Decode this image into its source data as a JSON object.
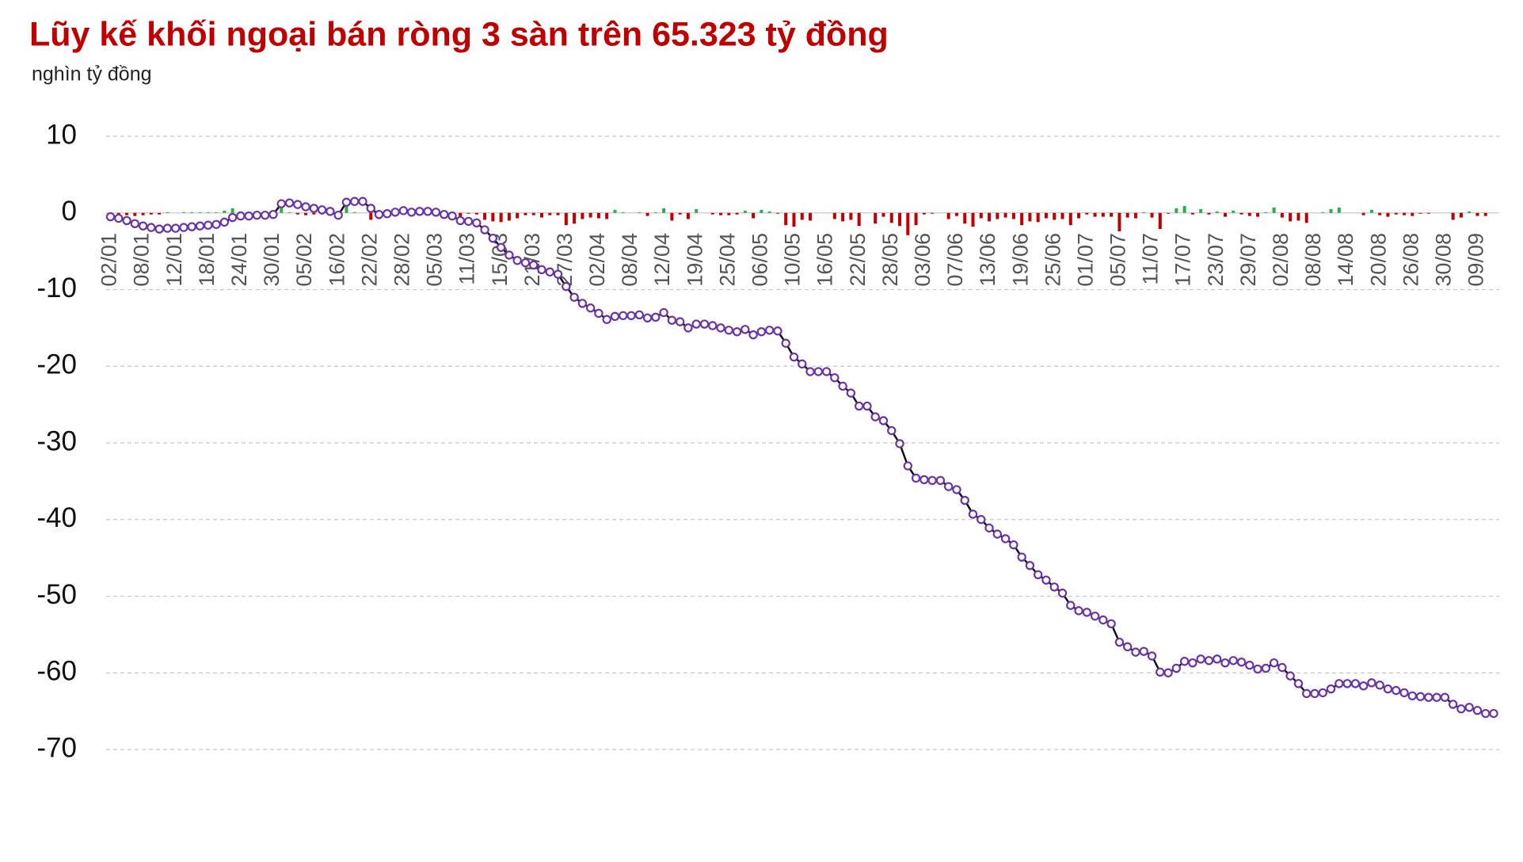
{
  "chart_data": {
    "type": "line",
    "title": "Lũy kế khối ngoại bán ròng 3 sàn trên 65.323 tỷ đồng",
    "subtitle": "nghìn tỷ đồng",
    "categories": [
      "02/01",
      null,
      null,
      null,
      "08/01",
      null,
      null,
      null,
      "12/01",
      null,
      null,
      null,
      "18/01",
      null,
      null,
      null,
      "24/01",
      null,
      null,
      null,
      "30/01",
      null,
      null,
      null,
      "05/02",
      null,
      null,
      null,
      "16/02",
      null,
      null,
      null,
      "22/02",
      null,
      null,
      null,
      "28/02",
      null,
      null,
      null,
      "05/03",
      null,
      null,
      null,
      "11/03",
      null,
      null,
      null,
      "15/03",
      null,
      null,
      null,
      "21/03",
      null,
      null,
      null,
      "27/03",
      null,
      null,
      null,
      "02/04",
      null,
      null,
      null,
      "08/04",
      null,
      null,
      null,
      "12/04",
      null,
      null,
      null,
      "19/04",
      null,
      null,
      null,
      "25/04",
      null,
      null,
      null,
      "06/05",
      null,
      null,
      null,
      "10/05",
      null,
      null,
      null,
      "16/05",
      null,
      null,
      null,
      "22/05",
      null,
      null,
      null,
      "28/05",
      null,
      null,
      null,
      "03/06",
      null,
      null,
      null,
      "07/06",
      null,
      null,
      null,
      "13/06",
      null,
      null,
      null,
      "19/06",
      null,
      null,
      null,
      "25/06",
      null,
      null,
      null,
      "01/07",
      null,
      null,
      null,
      "05/07",
      null,
      null,
      null,
      "11/07",
      null,
      null,
      null,
      "17/07",
      null,
      null,
      null,
      "23/07",
      null,
      null,
      null,
      "29/07",
      null,
      null,
      null,
      "02/08",
      null,
      null,
      null,
      "08/08",
      null,
      null,
      null,
      "14/08",
      null,
      null,
      null,
      "20/08",
      null,
      null,
      null,
      "26/08",
      null,
      null,
      null,
      "30/08",
      null,
      null,
      null,
      "09/09",
      null,
      null
    ],
    "series": [
      {
        "type": "bar",
        "color": "#c00000",
        "positive_color": "#22b14c",
        "values": [
          -0.5,
          -0.2,
          -0.3,
          -0.4,
          -0.3,
          -0.2,
          -0.2,
          0.1,
          0,
          0.1,
          0.1,
          0.1,
          0.1,
          0.1,
          0.3,
          0.6,
          0.2,
          0,
          0.1,
          0,
          0.1,
          1.4,
          0.1,
          -0.2,
          -0.3,
          -0.2,
          -0.2,
          -0.2,
          -0.5,
          1.7,
          0.1,
          0,
          -0.9,
          -0.8,
          0.1,
          0.2,
          0.2,
          -0.2,
          0.1,
          0,
          -0.1,
          -0.3,
          -0.2,
          -0.6,
          -0.1,
          -0.2,
          -0.9,
          -1.1,
          -1.2,
          -1.0,
          -0.7,
          -0.3,
          -0.3,
          -0.6,
          -0.3,
          -0.3,
          -1.6,
          -1.4,
          -0.8,
          -0.6,
          -0.7,
          -0.8,
          0.4,
          0.1,
          0,
          0.1,
          -0.4,
          0.1,
          0.6,
          -1.0,
          -0.2,
          -0.8,
          0.5,
          0,
          -0.2,
          -0.3,
          -0.3,
          -0.2,
          0.3,
          -0.7,
          0.4,
          0.2,
          -0.1,
          -1.6,
          -1.8,
          -0.9,
          -1.0,
          0,
          0,
          -0.8,
          -1.1,
          -0.9,
          -1.7,
          0,
          -1.4,
          -0.5,
          -1.3,
          -1.7,
          -2.9,
          -1.6,
          -0.2,
          -0.1,
          0,
          -0.8,
          -0.4,
          -1.4,
          -1.8,
          -0.7,
          -1.1,
          -0.8,
          -0.6,
          -0.8,
          -1.6,
          -1.1,
          -1.2,
          -0.7,
          -0.9,
          -0.8,
          -1.6,
          -0.7,
          -0.2,
          -0.5,
          -0.5,
          -0.5,
          -2.4,
          -0.6,
          -0.7,
          0.1,
          -0.6,
          -2.1,
          -0.1,
          0.6,
          0.9,
          -0.2,
          0.5,
          -0.2,
          0.2,
          -0.5,
          0.3,
          -0.2,
          -0.4,
          -0.5,
          0.1,
          0.7,
          -0.6,
          -1.1,
          -1.0,
          -1.3,
          0,
          0.1,
          0.5,
          0.7,
          0,
          0,
          -0.3,
          0.4,
          -0.3,
          -0.5,
          -0.2,
          -0.3,
          -0.4,
          -0.1,
          -0.1,
          0,
          0,
          -0.9,
          -0.6,
          0.2,
          -0.4,
          -0.4,
          0
        ]
      },
      {
        "type": "line",
        "color": "#111111",
        "marker_color": "#6a35a8",
        "values": [
          -0.5,
          -0.7,
          -1.0,
          -1.4,
          -1.7,
          -1.9,
          -2.1,
          -2.0,
          -2.0,
          -1.9,
          -1.8,
          -1.7,
          -1.6,
          -1.5,
          -1.2,
          -0.6,
          -0.4,
          -0.4,
          -0.3,
          -0.3,
          -0.2,
          1.2,
          1.3,
          1.1,
          0.8,
          0.6,
          0.4,
          0.2,
          -0.3,
          1.4,
          1.5,
          1.5,
          0.6,
          -0.2,
          -0.1,
          0.1,
          0.3,
          0.1,
          0.2,
          0.2,
          0.1,
          -0.2,
          -0.4,
          -1.0,
          -1.1,
          -1.3,
          -2.2,
          -3.3,
          -4.5,
          -5.5,
          -6.2,
          -6.5,
          -6.8,
          -7.4,
          -7.7,
          -8.0,
          -9.6,
          -11.0,
          -11.8,
          -12.4,
          -13.1,
          -13.9,
          -13.5,
          -13.4,
          -13.4,
          -13.3,
          -13.7,
          -13.6,
          -13.0,
          -14.0,
          -14.2,
          -15.0,
          -14.5,
          -14.5,
          -14.7,
          -15.0,
          -15.3,
          -15.5,
          -15.2,
          -15.9,
          -15.5,
          -15.3,
          -15.4,
          -17.0,
          -18.8,
          -19.7,
          -20.7,
          -20.7,
          -20.7,
          -21.5,
          -22.6,
          -23.5,
          -25.2,
          -25.2,
          -26.6,
          -27.1,
          -28.4,
          -30.1,
          -33.0,
          -34.6,
          -34.8,
          -34.9,
          -34.9,
          -35.7,
          -36.1,
          -37.5,
          -39.3,
          -40.0,
          -41.1,
          -41.9,
          -42.5,
          -43.3,
          -44.9,
          -46.0,
          -47.2,
          -47.9,
          -48.8,
          -49.6,
          -51.2,
          -51.9,
          -52.1,
          -52.6,
          -53.1,
          -53.6,
          -56.0,
          -56.6,
          -57.3,
          -57.2,
          -57.8,
          -59.9,
          -60.0,
          -59.4,
          -58.5,
          -58.7,
          -58.2,
          -58.4,
          -58.2,
          -58.7,
          -58.4,
          -58.6,
          -59.0,
          -59.5,
          -59.4,
          -58.7,
          -59.3,
          -60.4,
          -61.4,
          -62.7,
          -62.7,
          -62.6,
          -62.1,
          -61.4,
          -61.4,
          -61.4,
          -61.7,
          -61.3,
          -61.6,
          -62.1,
          -62.3,
          -62.6,
          -63.0,
          -63.1,
          -63.2,
          -63.2,
          -63.2,
          -64.1,
          -64.7,
          -64.5,
          -64.9,
          -65.3,
          -65.3
        ]
      }
    ],
    "ylim": [
      -70,
      10
    ],
    "yticks": [
      10,
      0,
      -10,
      -20,
      -30,
      -40,
      -50,
      -60,
      -70
    ],
    "grid": true
  }
}
